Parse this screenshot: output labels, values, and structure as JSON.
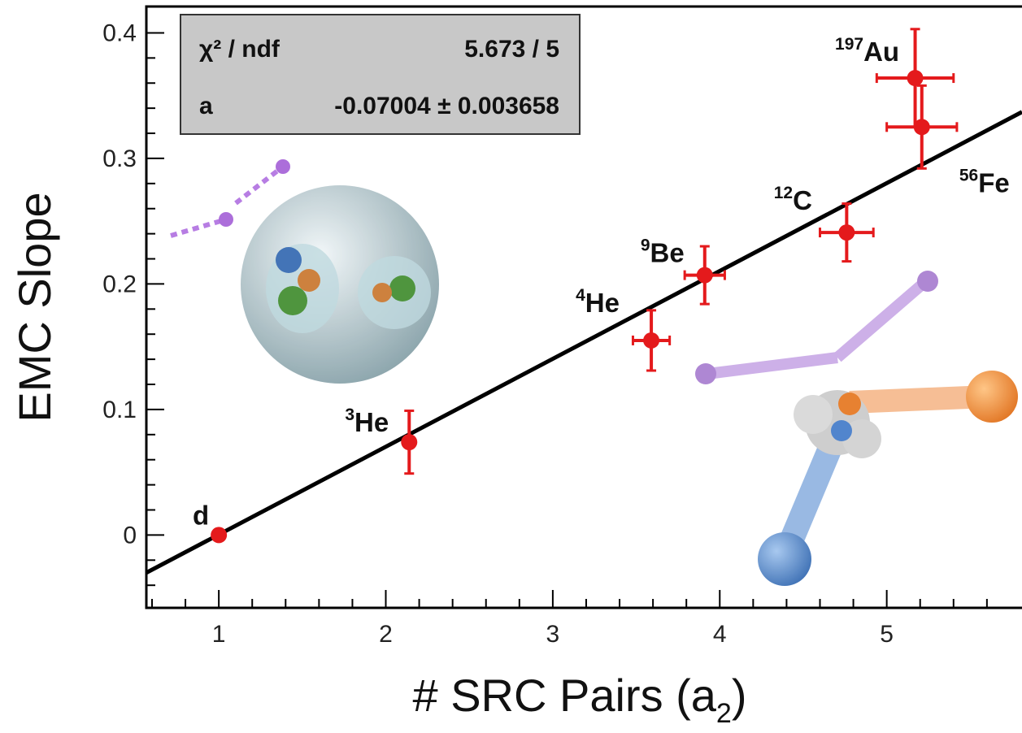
{
  "chart_data": {
    "type": "scatter",
    "y_label": "EMC Slope",
    "x_label": {
      "main": "# SRC Pairs (a",
      "sub": "2",
      "close": ")"
    },
    "x": [
      1,
      2.14,
      3.59,
      3.91,
      4.76,
      5.21,
      5.17
    ],
    "values": [
      0,
      0.074,
      0.155,
      0.207,
      0.241,
      0.325,
      0.364
    ],
    "xerr": [
      null,
      null,
      0.11,
      0.12,
      0.16,
      0.21,
      0.23
    ],
    "yerr": [
      null,
      0.025,
      0.024,
      0.023,
      0.023,
      0.033,
      0.039
    ],
    "labels": [
      {
        "text": "d"
      },
      {
        "sup": "3",
        "text": "He"
      },
      {
        "sup": "4",
        "text": "He"
      },
      {
        "sup": "9",
        "text": "Be"
      },
      {
        "sup": "12",
        "text": "C"
      },
      {
        "sup": "56",
        "text": "Fe"
      },
      {
        "sup": "197",
        "text": "Au"
      }
    ],
    "color": "#e41a1c",
    "fit": {
      "x": [
        0.566,
        5.81
      ],
      "y": [
        -0.03,
        0.337
      ],
      "color": "#000000"
    },
    "stats": {
      "chi_label": "χ² / ndf",
      "chi_value": "5.673 / 5",
      "param_label": "a",
      "param_value": "-0.07004 ± 0.003658"
    },
    "xlim": [
      0.566,
      5.81
    ],
    "ylim": [
      -0.058,
      0.421
    ],
    "xticks": [
      1,
      2,
      3,
      4,
      5
    ],
    "yticks": [
      0,
      0.1,
      0.2,
      0.3,
      0.4
    ],
    "xminorticks": [
      0.6,
      0.8,
      1.2,
      1.4,
      1.6,
      1.8,
      2.2,
      2.4,
      2.6,
      2.8,
      3.2,
      3.4,
      3.6,
      3.8,
      4.2,
      4.4,
      4.6,
      4.8,
      5.2,
      5.4,
      5.6
    ],
    "yminorticks": [
      -0.04,
      -0.02,
      0.02,
      0.04,
      0.06,
      0.08,
      0.12,
      0.14,
      0.16,
      0.18,
      0.22,
      0.24,
      0.26,
      0.28,
      0.32,
      0.34,
      0.36,
      0.38
    ]
  }
}
